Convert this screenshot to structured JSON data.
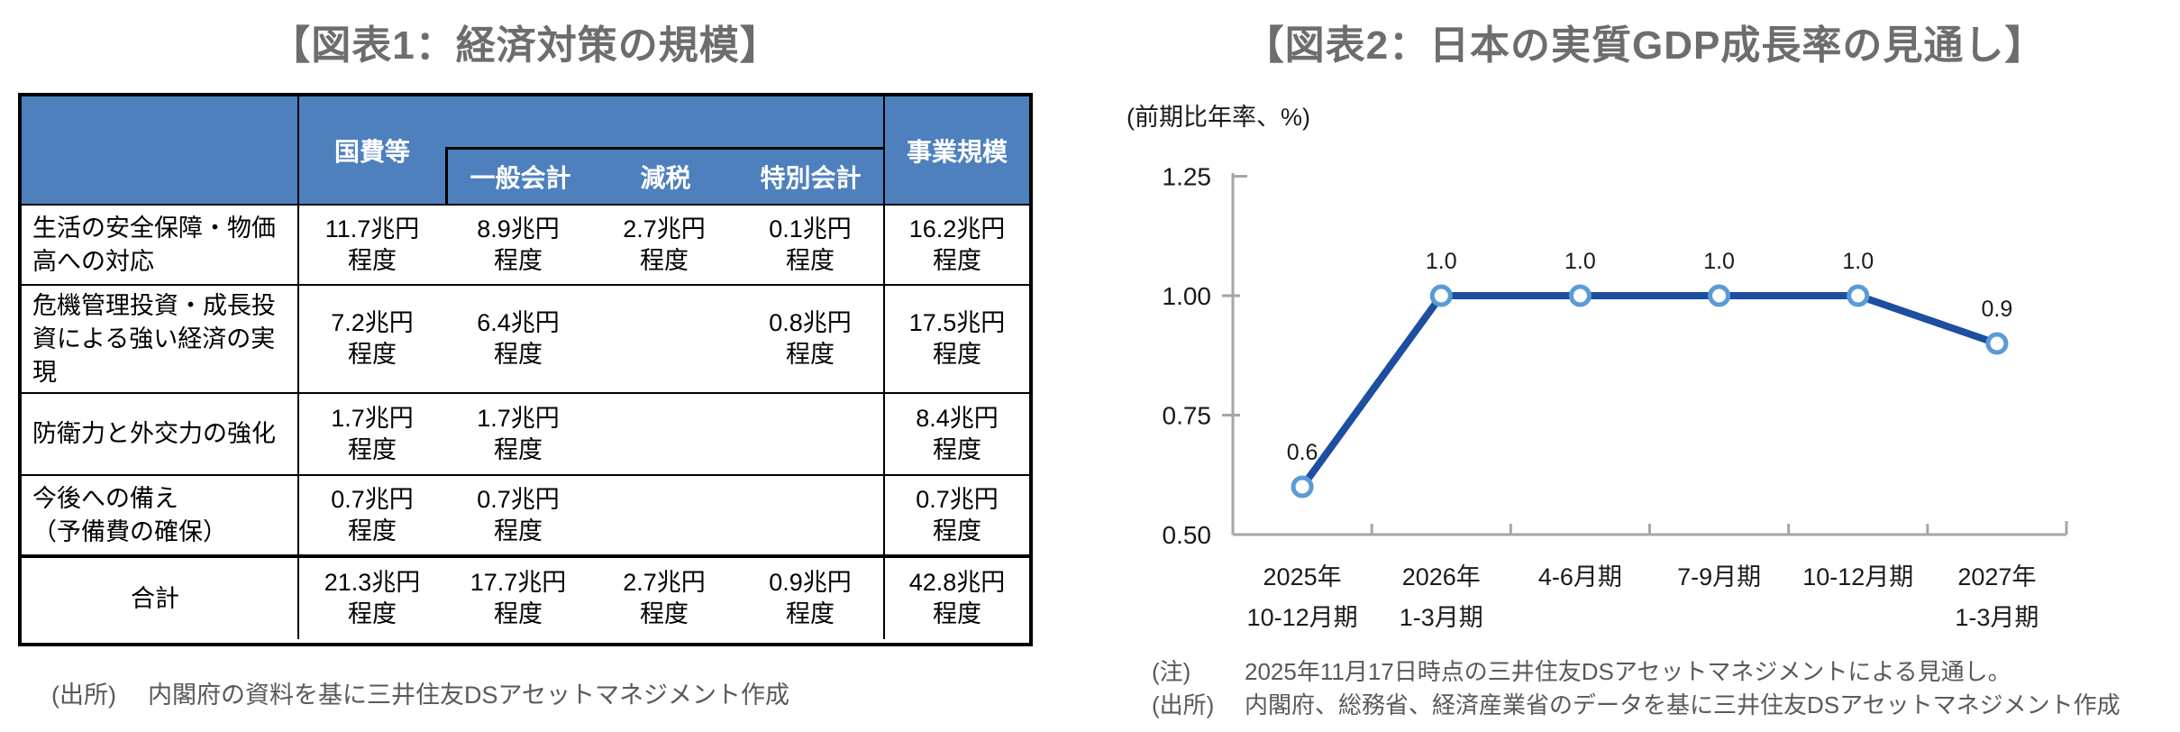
{
  "fig1": {
    "title": "【図表1：経済対策の規模】",
    "table": {
      "header": {
        "group": "国費等",
        "sub": [
          "一般会計",
          "減税",
          "特別会計"
        ],
        "scale": "事業規模"
      },
      "rows": [
        {
          "label": [
            "生活の安全保障・物価",
            "高への対応"
          ],
          "cells": [
            {
              "a": "11.7兆円",
              "b": "程度"
            },
            {
              "a": "8.9兆円",
              "b": "程度"
            },
            {
              "a": "2.7兆円",
              "b": "程度"
            },
            {
              "a": "0.1兆円",
              "b": "程度"
            },
            {
              "a": "16.2兆円",
              "b": "程度"
            }
          ]
        },
        {
          "label": [
            "危機管理投資・成長投",
            "資による強い経済の実現"
          ],
          "cells": [
            {
              "a": "7.2兆円",
              "b": "程度"
            },
            {
              "a": "6.4兆円",
              "b": "程度"
            },
            {
              "a": "",
              "b": ""
            },
            {
              "a": "0.8兆円",
              "b": "程度"
            },
            {
              "a": "17.5兆円",
              "b": "程度"
            }
          ]
        },
        {
          "label": [
            "防衛力と外交力の強化"
          ],
          "cells": [
            {
              "a": "1.7兆円",
              "b": "程度"
            },
            {
              "a": "1.7兆円",
              "b": "程度"
            },
            {
              "a": "",
              "b": ""
            },
            {
              "a": "",
              "b": ""
            },
            {
              "a": "8.4兆円",
              "b": "程度"
            }
          ]
        },
        {
          "label": [
            "今後への備え",
            "（予備費の確保）"
          ],
          "cells": [
            {
              "a": "0.7兆円",
              "b": "程度"
            },
            {
              "a": "0.7兆円",
              "b": "程度"
            },
            {
              "a": "",
              "b": ""
            },
            {
              "a": "",
              "b": ""
            },
            {
              "a": "0.7兆円",
              "b": "程度"
            }
          ]
        },
        {
          "label": [
            "合計"
          ],
          "cells": [
            {
              "a": "21.3兆円",
              "b": "程度"
            },
            {
              "a": "17.7兆円",
              "b": "程度"
            },
            {
              "a": "2.7兆円",
              "b": "程度"
            },
            {
              "a": "0.9兆円",
              "b": "程度"
            },
            {
              "a": "42.8兆円",
              "b": "程度"
            }
          ]
        }
      ]
    },
    "source": {
      "label": "(出所)",
      "text": "内閣府の資料を基に三井住友DSアセットマネジメント作成"
    }
  },
  "chart_data": {
    "type": "line",
    "title": "【図表2：日本の実質GDP成長率の見通し】",
    "unit_label": "(前期比年率、%)",
    "categories": [
      [
        "2025年",
        "10-12月期"
      ],
      [
        "2026年",
        "1-3月期"
      ],
      [
        "4-6月期"
      ],
      [
        "7-9月期"
      ],
      [
        "10-12月期"
      ],
      [
        "2027年",
        "1-3月期"
      ]
    ],
    "values": [
      0.6,
      1.0,
      1.0,
      1.0,
      1.0,
      0.9
    ],
    "data_labels": [
      "0.6",
      "1.0",
      "1.0",
      "1.0",
      "1.0",
      "0.9"
    ],
    "ylim": [
      0.5,
      1.25
    ],
    "yticks": [
      0.5,
      0.75,
      1.0,
      1.25
    ],
    "ytick_labels": [
      "0.50",
      "0.75",
      "1.00",
      "1.25"
    ],
    "grid": false,
    "legend": "none",
    "colors": {
      "line": "#1C4EA1",
      "marker_stroke": "#5B9BD5",
      "marker_fill": "#FFFFFF",
      "axis": "#A6A6A6"
    }
  },
  "fig2_notes": [
    {
      "label": "(注)",
      "text": "2025年11月17日時点の三井住友DSアセットマネジメントによる見通し。"
    },
    {
      "label": "(出所)",
      "text": "内閣府、総務省、経済産業省のデータを基に三井住友DSアセットマネジメント作成"
    }
  ]
}
